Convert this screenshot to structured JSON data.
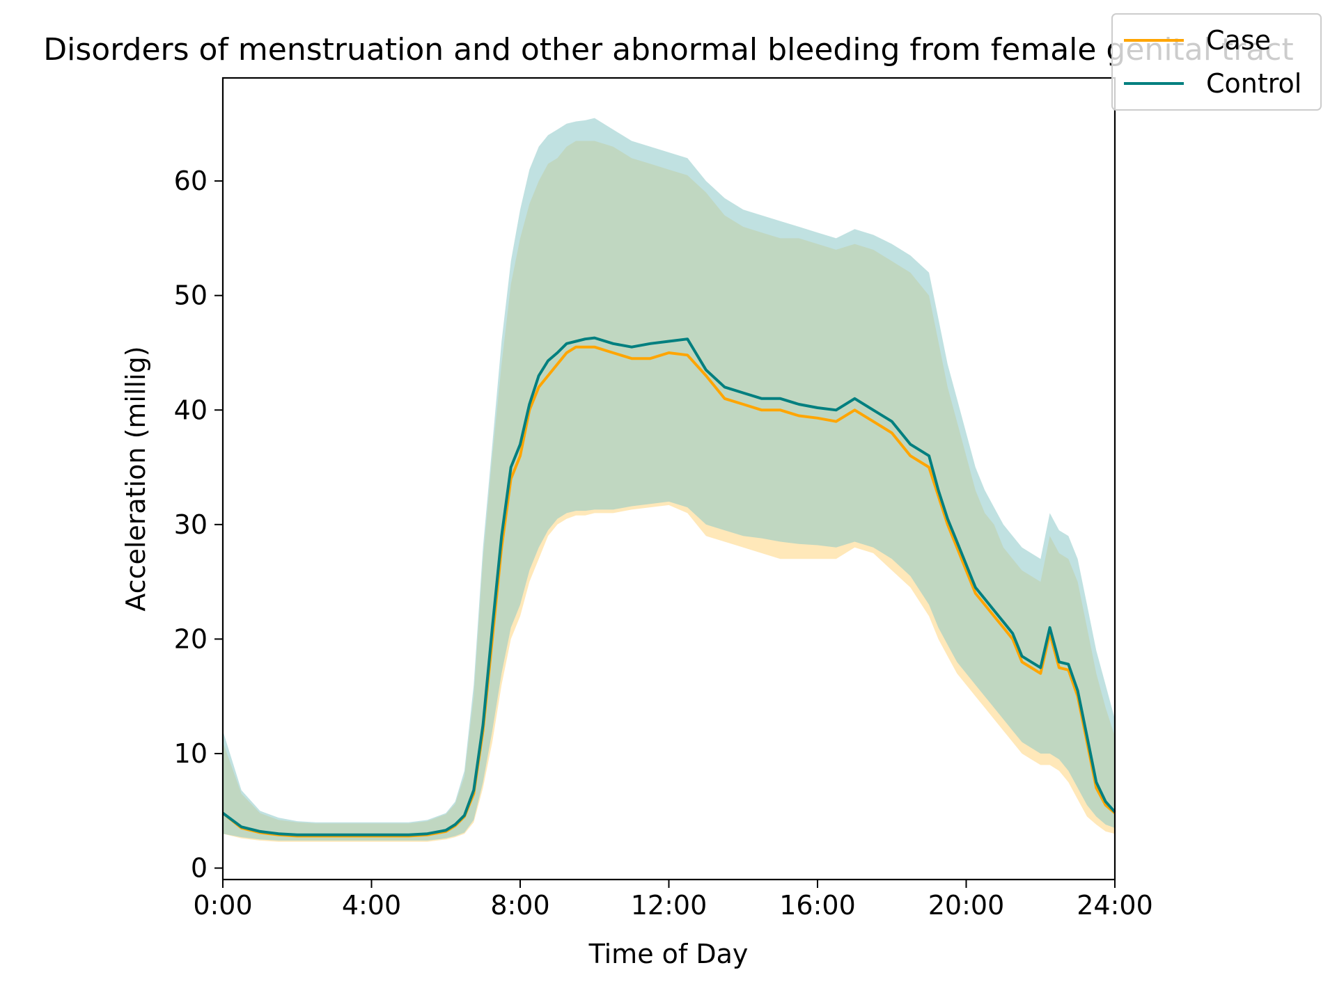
{
  "chart_data": {
    "type": "line",
    "title": "Disorders of menstruation and other abnormal bleeding from female genital tract",
    "xlabel": "Time of Day",
    "ylabel": "Acceleration (millig)",
    "xlim": [
      0,
      24
    ],
    "ylim": [
      -1,
      69
    ],
    "x_ticks": [
      0,
      4,
      8,
      12,
      16,
      20,
      24
    ],
    "x_tick_labels": [
      "0:00",
      "4:00",
      "8:00",
      "12:00",
      "16:00",
      "20:00",
      "24:00"
    ],
    "y_ticks": [
      0,
      10,
      20,
      30,
      40,
      50,
      60
    ],
    "y_tick_labels": [
      "0",
      "10",
      "20",
      "30",
      "40",
      "50",
      "60"
    ],
    "legend_position": "top-right",
    "x": [
      0,
      0.5,
      1,
      1.5,
      2,
      2.5,
      3,
      3.5,
      4,
      4.5,
      5,
      5.5,
      6,
      6.25,
      6.5,
      6.75,
      7,
      7.25,
      7.5,
      7.75,
      8,
      8.25,
      8.5,
      8.75,
      9,
      9.25,
      9.5,
      9.75,
      10,
      10.5,
      11,
      11.5,
      12,
      12.5,
      13,
      13.5,
      14,
      14.5,
      15,
      15.5,
      16,
      16.5,
      17,
      17.5,
      18,
      18.5,
      19,
      19.25,
      19.5,
      19.75,
      20,
      20.25,
      20.5,
      20.75,
      21,
      21.25,
      21.5,
      21.75,
      22,
      22.25,
      22.5,
      22.75,
      23,
      23.25,
      23.5,
      23.75,
      24
    ],
    "series": [
      {
        "name": "Case",
        "color": "#FFA500",
        "band_color": "#FFD580",
        "mean": [
          4.8,
          3.5,
          3.1,
          2.9,
          2.8,
          2.8,
          2.8,
          2.8,
          2.8,
          2.8,
          2.8,
          2.9,
          3.2,
          3.7,
          4.5,
          6.5,
          12,
          20,
          28,
          34,
          36,
          40,
          42,
          43,
          44,
          45,
          45.5,
          45.5,
          45.5,
          45,
          44.5,
          44.5,
          45,
          44.8,
          43,
          41,
          40.5,
          40,
          40,
          39.5,
          39.3,
          39,
          40,
          39,
          38,
          36,
          35,
          32.5,
          30,
          28,
          26,
          24,
          23,
          22,
          21,
          20,
          18,
          17.5,
          17,
          20.5,
          17.5,
          17.3,
          15,
          11,
          7,
          5.5,
          4.8
        ],
        "lower": [
          3,
          2.6,
          2.4,
          2.3,
          2.3,
          2.3,
          2.3,
          2.3,
          2.3,
          2.3,
          2.3,
          2.3,
          2.5,
          2.7,
          3,
          4,
          7,
          11,
          16,
          20,
          22,
          25,
          27,
          29,
          30,
          30.5,
          30.8,
          30.8,
          31,
          31,
          31.3,
          31.5,
          31.7,
          31,
          29,
          28.5,
          28,
          27.5,
          27,
          27,
          27,
          27,
          28,
          27.5,
          26,
          24.5,
          22,
          20,
          18.5,
          17,
          16,
          15,
          14,
          13,
          12,
          11,
          10,
          9.5,
          9,
          9,
          8.5,
          7.5,
          6,
          4.5,
          3.8,
          3.2,
          3
        ],
        "upper": [
          11,
          6.5,
          4.8,
          4.2,
          4,
          3.9,
          3.9,
          3.9,
          3.9,
          3.9,
          3.9,
          4.1,
          4.7,
          5.6,
          8,
          15,
          27,
          36,
          44,
          51,
          55,
          58,
          60,
          61.5,
          62,
          63,
          63.5,
          63.5,
          63.5,
          63,
          62,
          61.5,
          61,
          60.5,
          59,
          57,
          56,
          55.5,
          55,
          55,
          54.5,
          54,
          54.5,
          54,
          53,
          52,
          50,
          46,
          42,
          39,
          36,
          33,
          31,
          30,
          28,
          27,
          26,
          25.5,
          25,
          29,
          27.5,
          27,
          25,
          21,
          17,
          14,
          11.5
        ]
      },
      {
        "name": "Control",
        "color": "#007F7F",
        "band_color": "#8CC8C8",
        "mean": [
          4.8,
          3.6,
          3.2,
          3.0,
          2.9,
          2.9,
          2.9,
          2.9,
          2.9,
          2.9,
          2.9,
          3.0,
          3.3,
          3.8,
          4.6,
          6.8,
          12.5,
          21,
          29,
          35,
          37,
          40.5,
          43,
          44.3,
          45,
          45.8,
          46,
          46.2,
          46.3,
          45.8,
          45.5,
          45.8,
          46,
          46.2,
          43.5,
          42,
          41.5,
          41,
          41,
          40.5,
          40.2,
          40,
          41,
          40,
          39,
          37,
          36,
          33,
          30.5,
          28.5,
          26.5,
          24.5,
          23.5,
          22.5,
          21.5,
          20.5,
          18.5,
          18,
          17.5,
          21,
          18,
          17.8,
          15.5,
          11.5,
          7.5,
          5.8,
          4.9
        ],
        "lower": [
          3,
          2.7,
          2.5,
          2.4,
          2.4,
          2.4,
          2.4,
          2.4,
          2.4,
          2.4,
          2.4,
          2.4,
          2.6,
          2.8,
          3.1,
          4.2,
          7.5,
          12,
          17,
          21,
          23,
          26,
          28,
          29.5,
          30.5,
          31,
          31.2,
          31.2,
          31.3,
          31.3,
          31.6,
          31.8,
          32,
          31.5,
          30,
          29.5,
          29,
          28.8,
          28.5,
          28.3,
          28.2,
          28,
          28.5,
          28,
          27,
          25.5,
          23,
          21,
          19.5,
          18,
          17,
          16,
          15,
          14,
          13,
          12,
          11,
          10.5,
          10,
          10,
          9.5,
          8.5,
          7,
          5.5,
          4.5,
          3.8,
          3.5
        ],
        "upper": [
          12,
          6.8,
          5,
          4.4,
          4.1,
          4,
          4,
          4,
          4,
          4,
          4,
          4.2,
          4.8,
          5.8,
          8.5,
          16,
          28,
          37,
          46,
          53,
          57.5,
          61,
          63,
          64,
          64.5,
          65,
          65.2,
          65.3,
          65.5,
          64.5,
          63.5,
          63,
          62.5,
          62,
          60,
          58.5,
          57.5,
          57,
          56.5,
          56,
          55.5,
          55,
          55.8,
          55.3,
          54.5,
          53.5,
          52,
          48,
          44,
          41,
          38,
          35,
          33,
          31.5,
          30,
          29,
          28,
          27.5,
          27,
          31,
          29.5,
          29,
          27,
          23,
          19,
          16,
          13
        ]
      }
    ]
  }
}
